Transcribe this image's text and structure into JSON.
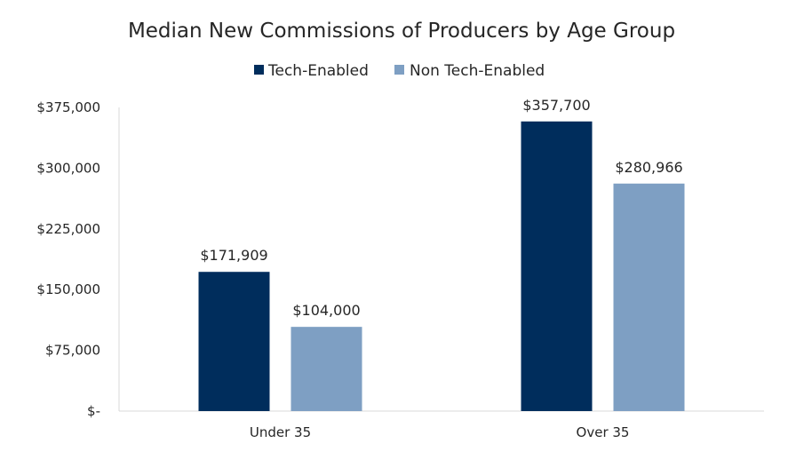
{
  "chart_data": {
    "type": "bar",
    "title": "Median New Commissions of Producers by Age Group",
    "categories": [
      "Under 35",
      "Over 35"
    ],
    "series": [
      {
        "name": "Tech-Enabled",
        "color": "#002d5c",
        "values": [
          171909,
          357700
        ],
        "labels": [
          "$171,909",
          "$357,700"
        ]
      },
      {
        "name": "Non Tech-Enabled",
        "color": "#7e9fc3",
        "values": [
          104000,
          280966
        ],
        "labels": [
          "$104,000",
          "$280,966"
        ]
      }
    ],
    "ylim": [
      0,
      375000
    ],
    "yticks": [
      {
        "value": 0,
        "label": "$-"
      },
      {
        "value": 75000,
        "label": "$75,000"
      },
      {
        "value": 150000,
        "label": "$150,000"
      },
      {
        "value": 225000,
        "label": "$225,000"
      },
      {
        "value": 300000,
        "label": "$300,000"
      },
      {
        "value": 375000,
        "label": "$375,000"
      }
    ],
    "legend_position": "top-center",
    "grid": false,
    "xlabel": "",
    "ylabel": ""
  }
}
